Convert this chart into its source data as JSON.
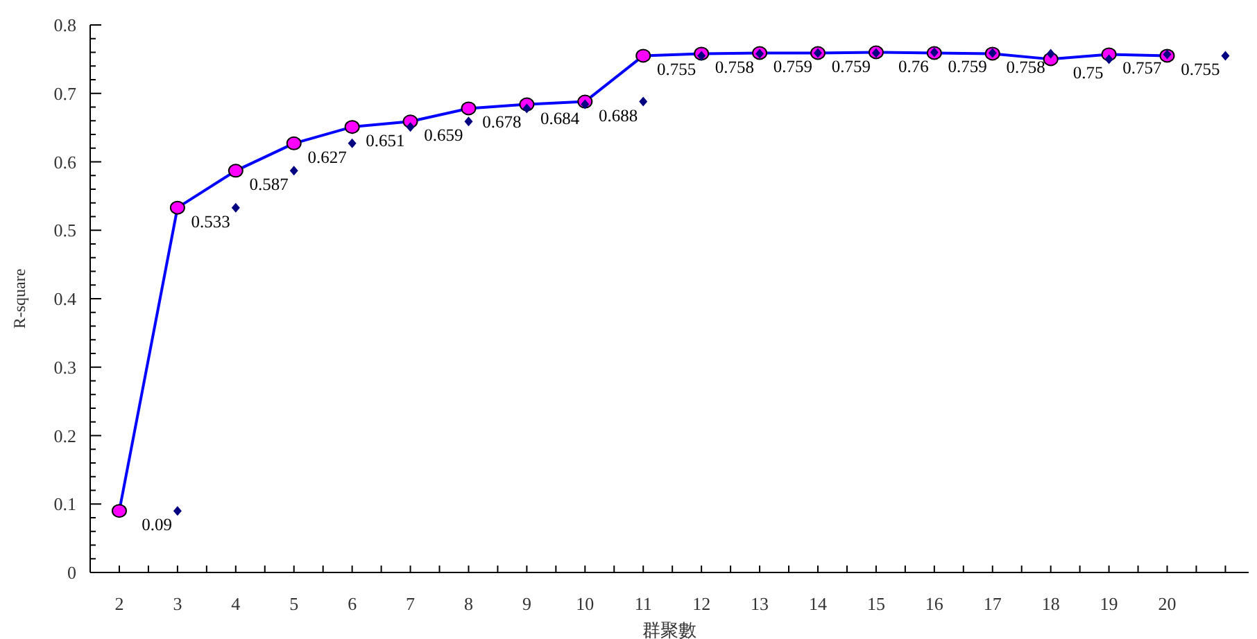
{
  "chart_data": {
    "type": "line",
    "xlabel": "群聚數",
    "ylabel": "R-square",
    "x": [
      2,
      3,
      4,
      5,
      6,
      7,
      8,
      9,
      10,
      11,
      12,
      13,
      14,
      15,
      16,
      17,
      18,
      19,
      20
    ],
    "series": [
      {
        "color": "#0000ff",
        "marker": "circle",
        "values": [
          0.09,
          0.533,
          0.587,
          0.627,
          0.651,
          0.659,
          0.678,
          0.684,
          0.688,
          0.755,
          0.758,
          0.759,
          0.759,
          0.76,
          0.759,
          0.758,
          0.75,
          0.757,
          0.755
        ]
      },
      {
        "type": "scatter",
        "color": "#000080",
        "marker": "diamond",
        "x": [
          3,
          4,
          5,
          6,
          7,
          8,
          9,
          10,
          11,
          12,
          13,
          14,
          15,
          16,
          17,
          18,
          19,
          20,
          21
        ],
        "values": [
          0.09,
          0.533,
          0.587,
          0.627,
          0.651,
          0.659,
          0.678,
          0.684,
          0.688,
          0.755,
          0.758,
          0.759,
          0.759,
          0.76,
          0.759,
          0.758,
          0.75,
          0.757,
          0.755
        ],
        "value_labels": [
          "0.09",
          "0.533",
          "0.587",
          "0.627",
          "0.651",
          "0.659",
          "0.678",
          "0.684",
          "0.688",
          "0.755",
          "0.758",
          "0.759",
          "0.759",
          "0.76",
          "0.759",
          "0.758",
          "0.75",
          "0.757",
          "0.755"
        ]
      }
    ],
    "xlim": [
      1.5,
      21.4
    ],
    "xticks": [
      {
        "value": 1.5,
        "label": null
      },
      2,
      {
        "value": 2.5,
        "label": null
      },
      3,
      {
        "value": 3.5,
        "label": null
      },
      4,
      {
        "value": 4.5,
        "label": null
      },
      5,
      {
        "value": 5.5,
        "label": null
      },
      6,
      {
        "value": 6.5,
        "label": null
      },
      7,
      {
        "value": 7.5,
        "label": null
      },
      8,
      {
        "value": 8.5,
        "label": null
      },
      9,
      {
        "value": 9.5,
        "label": null
      },
      10,
      {
        "value": 10.5,
        "label": null
      },
      11,
      {
        "value": 11.5,
        "label": null
      },
      12,
      {
        "value": 12.5,
        "label": null
      },
      13,
      {
        "value": 13.5,
        "label": null
      },
      14,
      {
        "value": 14.5,
        "label": null
      },
      15,
      {
        "value": 15.5,
        "label": null
      },
      16,
      {
        "value": 16.5,
        "label": null
      },
      17,
      {
        "value": 17.5,
        "label": null
      },
      18,
      {
        "value": 18.5,
        "label": null
      },
      19,
      {
        "value": 19.5,
        "label": null
      },
      20,
      {
        "value": 20.5,
        "label": null
      },
      {
        "value": 21,
        "label": null
      }
    ],
    "ylim": [
      0,
      0.8
    ],
    "yticks": [
      0,
      {
        "value": 0.02,
        "label": null
      },
      {
        "value": 0.04,
        "label": null
      },
      {
        "value": 0.06,
        "label": null
      },
      {
        "value": 0.08,
        "label": null
      },
      0.1,
      {
        "value": 0.12,
        "label": null
      },
      {
        "value": 0.14,
        "label": null
      },
      {
        "value": 0.16,
        "label": null
      },
      {
        "value": 0.18,
        "label": null
      },
      0.2,
      {
        "value": 0.22,
        "label": null
      },
      {
        "value": 0.24,
        "label": null
      },
      {
        "value": 0.26,
        "label": null
      },
      {
        "value": 0.28,
        "label": null
      },
      0.3,
      {
        "value": 0.32,
        "label": null
      },
      {
        "value": 0.34,
        "label": null
      },
      {
        "value": 0.36,
        "label": null
      },
      {
        "value": 0.38,
        "label": null
      },
      0.4,
      {
        "value": 0.42,
        "label": null
      },
      {
        "value": 0.44,
        "label": null
      },
      {
        "value": 0.46,
        "label": null
      },
      {
        "value": 0.48,
        "label": null
      },
      0.5,
      {
        "value": 0.52,
        "label": null
      },
      {
        "value": 0.54,
        "label": null
      },
      {
        "value": 0.56,
        "label": null
      },
      {
        "value": 0.58,
        "label": null
      },
      0.6,
      {
        "value": 0.62,
        "label": null
      },
      {
        "value": 0.64,
        "label": null
      },
      {
        "value": 0.66,
        "label": null
      },
      {
        "value": 0.68,
        "label": null
      },
      0.7,
      {
        "value": 0.72,
        "label": null
      },
      {
        "value": 0.74,
        "label": null
      },
      {
        "value": 0.76,
        "label": null
      },
      {
        "value": 0.78,
        "label": null
      },
      0.8
    ],
    "grid": false
  }
}
